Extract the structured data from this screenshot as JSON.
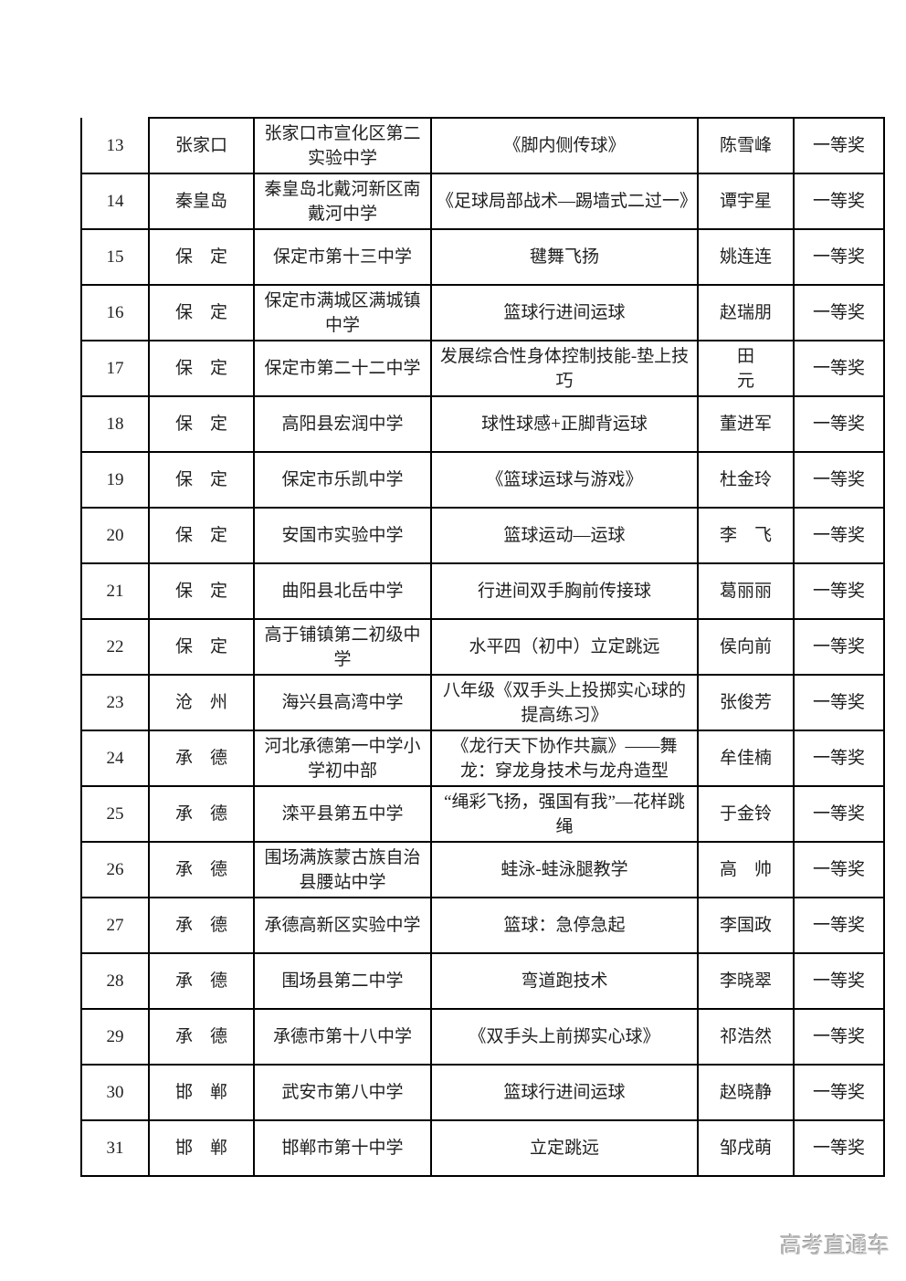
{
  "table": {
    "rows": [
      {
        "number": "13",
        "city": "张家口",
        "school": "张家口市宣化区第二实验中学",
        "title": "《脚内侧传球》",
        "teacher": "陈雪峰",
        "award": "一等奖"
      },
      {
        "number": "14",
        "city": "秦皇岛",
        "school": "秦皇岛北戴河新区南戴河中学",
        "title": "《足球局部战术—踢墙式二过一》",
        "teacher": "谭宇星",
        "award": "一等奖"
      },
      {
        "number": "15",
        "city": "保　定",
        "school": "保定市第十三中学",
        "title": "毽舞飞扬",
        "teacher": "姚连连",
        "award": "一等奖"
      },
      {
        "number": "16",
        "city": "保　定",
        "school": "保定市满城区满城镇中学",
        "title": "篮球行进间运球",
        "teacher": "赵瑞朋",
        "award": "一等奖"
      },
      {
        "number": "17",
        "city": "保　定",
        "school": "保定市第二十二中学",
        "title": "发展综合性身体控制技能-垫上技巧",
        "teacher": "田\n元",
        "award": "一等奖"
      },
      {
        "number": "18",
        "city": "保　定",
        "school": "高阳县宏润中学",
        "title": "球性球感+正脚背运球",
        "teacher": "董进军",
        "award": "一等奖"
      },
      {
        "number": "19",
        "city": "保　定",
        "school": "保定市乐凯中学",
        "title": "《篮球运球与游戏》",
        "teacher": "杜金玲",
        "award": "一等奖"
      },
      {
        "number": "20",
        "city": "保　定",
        "school": "安国市实验中学",
        "title": "篮球运动—运球",
        "teacher": "李　飞",
        "award": "一等奖"
      },
      {
        "number": "21",
        "city": "保　定",
        "school": "曲阳县北岳中学",
        "title": "行进间双手胸前传接球",
        "teacher": "葛丽丽",
        "award": "一等奖"
      },
      {
        "number": "22",
        "city": "保　定",
        "school": "高于铺镇第二初级中学",
        "title": "水平四（初中）立定跳远",
        "teacher": "侯向前",
        "award": "一等奖"
      },
      {
        "number": "23",
        "city": "沧　州",
        "school": "海兴县高湾中学",
        "title": "八年级《双手头上投掷实心球的提高练习》",
        "teacher": "张俊芳",
        "award": "一等奖"
      },
      {
        "number": "24",
        "city": "承　德",
        "school": "河北承德第一中学小学初中部",
        "title": "《龙行天下协作共赢》——舞龙：穿龙身技术与龙舟造型",
        "teacher": "牟佳楠",
        "award": "一等奖"
      },
      {
        "number": "25",
        "city": "承　德",
        "school": "滦平县第五中学",
        "title": "“绳彩飞扬，强国有我”—花样跳绳",
        "teacher": "于金铃",
        "award": "一等奖"
      },
      {
        "number": "26",
        "city": "承　德",
        "school": "围场满族蒙古族自治县腰站中学",
        "title": "蛙泳-蛙泳腿教学",
        "teacher": "高　帅",
        "award": "一等奖"
      },
      {
        "number": "27",
        "city": "承　德",
        "school": "承德高新区实验中学",
        "title": "篮球：急停急起",
        "teacher": "李国政",
        "award": "一等奖"
      },
      {
        "number": "28",
        "city": "承　德",
        "school": "围场县第二中学",
        "title": "弯道跑技术",
        "teacher": "李晓翠",
        "award": "一等奖"
      },
      {
        "number": "29",
        "city": "承　德",
        "school": "承德市第十八中学",
        "title": "《双手头上前掷实心球》",
        "teacher": "祁浩然",
        "award": "一等奖"
      },
      {
        "number": "30",
        "city": "邯　郸",
        "school": "武安市第八中学",
        "title": "篮球行进间运球",
        "teacher": "赵晓静",
        "award": "一等奖"
      },
      {
        "number": "31",
        "city": "邯　郸",
        "school": "邯郸市第十中学",
        "title": "立定跳远",
        "teacher": "邹戌萌",
        "award": "一等奖"
      }
    ]
  },
  "watermark": {
    "text": "高考直通车"
  },
  "colors": {
    "background": "#ffffff",
    "border": "#000000",
    "text": "#1f1f1f",
    "watermark": "#c0c0c0"
  }
}
